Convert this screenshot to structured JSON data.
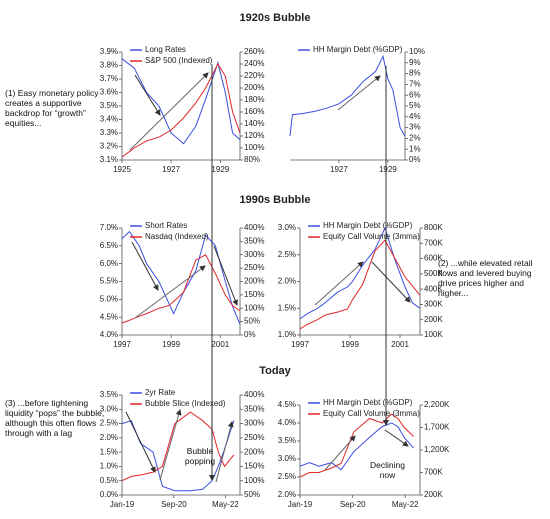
{
  "sections": [
    "1920s Bubble",
    "1990s Bubble",
    "Today"
  ],
  "annotations": [
    "(1) Easy monetary policy creates a supportive backdrop for “growth” equities...",
    "(2) ...while elevated retail flows and levered buying drive prices higher and higher...",
    "(3) ...before tightening liquidity “pops” the bubble, although this often flows through with a lag"
  ],
  "chart_data": [
    {
      "type": "line",
      "x": [
        1925,
        1925.5,
        1926,
        1926.5,
        1927,
        1927.5,
        1928,
        1928.4,
        1928.9,
        1929.2,
        1929.5,
        1929.8
      ],
      "xlim": [
        1925,
        1929.8
      ],
      "xticks": [
        1925,
        1927,
        1929
      ],
      "ylim": [
        3.1,
        3.9
      ],
      "yticks": [
        {
          "value": 3.1,
          "label": "3.1%"
        },
        {
          "value": 3.2,
          "label": "3.2%"
        },
        {
          "value": 3.3,
          "label": "3.3%"
        },
        {
          "value": 3.4,
          "label": "3.4%"
        },
        {
          "value": 3.5,
          "label": "3.5%"
        },
        {
          "value": 3.6,
          "label": "3.6%"
        },
        {
          "value": 3.7,
          "label": "3.7%"
        },
        {
          "value": 3.8,
          "label": "3.8%"
        },
        {
          "value": 3.9,
          "label": "3.9%"
        }
      ],
      "y2lim": [
        80,
        260
      ],
      "y2ticks": [
        {
          "value": 80,
          "label": "80%"
        },
        {
          "value": 100,
          "label": "100%"
        },
        {
          "value": 120,
          "label": "120%"
        },
        {
          "value": 140,
          "label": "140%"
        },
        {
          "value": 160,
          "label": "160%"
        },
        {
          "value": 180,
          "label": "180%"
        },
        {
          "value": 200,
          "label": "200%"
        },
        {
          "value": 220,
          "label": "220%"
        },
        {
          "value": 240,
          "label": "240%"
        },
        {
          "value": 260,
          "label": "260%"
        }
      ],
      "series": [
        {
          "name": "Long Rates",
          "color": "#3b4fe0",
          "values": [
            3.85,
            3.78,
            3.6,
            3.5,
            3.3,
            3.22,
            3.35,
            3.55,
            3.82,
            3.6,
            3.3,
            3.25
          ]
        },
        {
          "name": "S&P 500 (Indexed)",
          "color": "#e0262a",
          "axis": "y2",
          "values": [
            85,
            100,
            112,
            118,
            130,
            150,
            175,
            200,
            240,
            220,
            160,
            125
          ]
        }
      ]
    },
    {
      "type": "line",
      "x": [
        1925,
        1925.1,
        1925.5,
        1926,
        1926.5,
        1927,
        1927.5,
        1928,
        1928.5,
        1928.8,
        1929,
        1929.2,
        1929.5,
        1929.7
      ],
      "xlim": [
        1925,
        1929.7
      ],
      "xticks": [
        1927,
        1929
      ],
      "y2lim": [
        0,
        10
      ],
      "y2ticks": [
        {
          "value": 0,
          "label": "0%"
        },
        {
          "value": 1,
          "label": "1%"
        },
        {
          "value": 2,
          "label": "2%"
        },
        {
          "value": 3,
          "label": "3%"
        },
        {
          "value": 4,
          "label": "4%"
        },
        {
          "value": 5,
          "label": "5%"
        },
        {
          "value": 6,
          "label": "6%"
        },
        {
          "value": 7,
          "label": "7%"
        },
        {
          "value": 8,
          "label": "8%"
        },
        {
          "value": 9,
          "label": "9%"
        },
        {
          "value": 10,
          "label": "10%"
        }
      ],
      "series": [
        {
          "name": "HH Margin Debt (%GDP)",
          "color": "#3b4fe0",
          "axis": "y2",
          "values": [
            2.2,
            4.2,
            4.3,
            4.5,
            4.8,
            5.2,
            6.0,
            7.3,
            8.2,
            9.6,
            7.5,
            6.5,
            3.0,
            2.2
          ]
        }
      ]
    },
    {
      "type": "line",
      "x": [
        1997,
        1997.3,
        1997.7,
        1998,
        1998.5,
        1998.9,
        1999.1,
        1999.5,
        2000,
        2000.4,
        2000.8,
        2001.2,
        2001.5,
        2001.8
      ],
      "xlim": [
        1997,
        2001.8
      ],
      "xticks": [
        1997,
        1999,
        2001
      ],
      "ylim": [
        4.0,
        7.0
      ],
      "yticks": [
        {
          "value": 4.0,
          "label": "4.0%"
        },
        {
          "value": 4.5,
          "label": "4.5%"
        },
        {
          "value": 5.0,
          "label": "5.0%"
        },
        {
          "value": 5.5,
          "label": "5.5%"
        },
        {
          "value": 6.0,
          "label": "6.0%"
        },
        {
          "value": 6.5,
          "label": "6.5%"
        },
        {
          "value": 7.0,
          "label": "7.0%"
        }
      ],
      "y2lim": [
        0,
        400
      ],
      "y2ticks": [
        {
          "value": 0,
          "label": "0%"
        },
        {
          "value": 50,
          "label": "50%"
        },
        {
          "value": 100,
          "label": "100%"
        },
        {
          "value": 150,
          "label": "150%"
        },
        {
          "value": 200,
          "label": "200%"
        },
        {
          "value": 250,
          "label": "250%"
        },
        {
          "value": 300,
          "label": "300%"
        },
        {
          "value": 350,
          "label": "350%"
        },
        {
          "value": 400,
          "label": "400%"
        }
      ],
      "series": [
        {
          "name": "Short Rates",
          "color": "#3b4fe0",
          "values": [
            6.7,
            6.9,
            6.5,
            6.0,
            5.5,
            4.9,
            4.6,
            5.2,
            5.8,
            6.8,
            6.5,
            5.5,
            4.8,
            4.3
          ]
        },
        {
          "name": "Nasdaq (Indexed)",
          "color": "#e0262a",
          "axis": "y2",
          "values": [
            45,
            55,
            70,
            80,
            100,
            110,
            125,
            160,
            280,
            300,
            230,
            150,
            110,
            90
          ]
        }
      ]
    },
    {
      "type": "line",
      "x": [
        1997,
        1997.3,
        1997.7,
        1998,
        1998.5,
        1998.9,
        1999.1,
        1999.5,
        2000,
        2000.4,
        2000.8,
        2001.2,
        2001.5,
        2001.8
      ],
      "xlim": [
        1997,
        2001.8
      ],
      "xticks": [
        1997,
        1999,
        2001
      ],
      "ylim": [
        1.0,
        3.0
      ],
      "yticks": [
        {
          "value": 1.0,
          "label": "1.0%"
        },
        {
          "value": 1.5,
          "label": "1.5%"
        },
        {
          "value": 2.0,
          "label": "2.0%"
        },
        {
          "value": 2.5,
          "label": "2.5%"
        },
        {
          "value": 3.0,
          "label": "3.0%"
        }
      ],
      "y2lim": [
        100000,
        800000
      ],
      "y2ticks": [
        {
          "value": 100000,
          "label": "100K"
        },
        {
          "value": 200000,
          "label": "200K"
        },
        {
          "value": 300000,
          "label": "300K"
        },
        {
          "value": 400000,
          "label": "400K"
        },
        {
          "value": 500000,
          "label": "500K"
        },
        {
          "value": 600000,
          "label": "600K"
        },
        {
          "value": 700000,
          "label": "700K"
        },
        {
          "value": 800000,
          "label": "800K"
        }
      ],
      "series": [
        {
          "name": "HH Margin Debt (%GDP)",
          "color": "#3b4fe0",
          "values": [
            1.3,
            1.4,
            1.5,
            1.6,
            1.8,
            1.9,
            2.0,
            2.3,
            2.6,
            3.0,
            2.4,
            1.9,
            1.6,
            1.5
          ]
        },
        {
          "name": "Equity Call Volume (3mma)",
          "color": "#e0262a",
          "axis": "y2",
          "values": [
            140000,
            170000,
            200000,
            230000,
            250000,
            270000,
            330000,
            430000,
            650000,
            720000,
            600000,
            480000,
            420000,
            360000
          ]
        }
      ]
    },
    {
      "type": "line",
      "annotation": "Bubble popping",
      "x": [
        2019,
        2019.3,
        2019.6,
        2020,
        2020.3,
        2020.7,
        2021.2,
        2021.6,
        2021.9,
        2022.1,
        2022.3,
        2022.6
      ],
      "xlim": [
        2019,
        2022.8
      ],
      "xticks": [
        {
          "value": 2019,
          "label": "Jan-19"
        },
        {
          "value": 2020.67,
          "label": "Sep-20"
        },
        {
          "value": 2022.33,
          "label": "May-22"
        }
      ],
      "ylim": [
        0.0,
        3.5
      ],
      "yticks": [
        {
          "value": 0.0,
          "label": "0.0%"
        },
        {
          "value": 0.5,
          "label": "0.5%"
        },
        {
          "value": 1.0,
          "label": "1.0%"
        },
        {
          "value": 1.5,
          "label": "1.5%"
        },
        {
          "value": 2.0,
          "label": "2.0%"
        },
        {
          "value": 2.5,
          "label": "2.5%"
        },
        {
          "value": 3.0,
          "label": "3.0%"
        },
        {
          "value": 3.5,
          "label": "3.5%"
        }
      ],
      "y2lim": [
        50,
        400
      ],
      "y2ticks": [
        {
          "value": 50,
          "label": "50%"
        },
        {
          "value": 100,
          "label": "100%"
        },
        {
          "value": 150,
          "label": "150%"
        },
        {
          "value": 200,
          "label": "200%"
        },
        {
          "value": 250,
          "label": "250%"
        },
        {
          "value": 300,
          "label": "300%"
        },
        {
          "value": 350,
          "label": "350%"
        },
        {
          "value": 400,
          "label": "400%"
        }
      ],
      "series": [
        {
          "name": "2yr Rate",
          "color": "#3b4fe0",
          "values": [
            2.5,
            2.6,
            1.8,
            1.5,
            0.3,
            0.15,
            0.15,
            0.2,
            0.5,
            1.0,
            1.6,
            2.6
          ]
        },
        {
          "name": "Bubble Slice (Indexed)",
          "color": "#e0262a",
          "axis": "y2",
          "values": [
            100,
            115,
            120,
            130,
            150,
            300,
            340,
            310,
            280,
            200,
            150,
            190
          ]
        }
      ]
    },
    {
      "type": "line",
      "annotation": "Declining now",
      "x": [
        2019,
        2019.3,
        2019.6,
        2020,
        2020.3,
        2020.7,
        2021.2,
        2021.6,
        2021.9,
        2022.1,
        2022.3,
        2022.6
      ],
      "xlim": [
        2019,
        2022.8
      ],
      "xticks": [
        {
          "value": 2019,
          "label": "Jan-19"
        },
        {
          "value": 2020.67,
          "label": "Sep-20"
        },
        {
          "value": 2022.33,
          "label": "May-22"
        }
      ],
      "ylim": [
        2.0,
        4.5
      ],
      "yticks": [
        {
          "value": 2.0,
          "label": "2.0%"
        },
        {
          "value": 2.5,
          "label": "2.5%"
        },
        {
          "value": 3.0,
          "label": "3.0%"
        },
        {
          "value": 3.5,
          "label": "3.5%"
        },
        {
          "value": 4.0,
          "label": "4.0%"
        },
        {
          "value": 4.5,
          "label": "4.5%"
        }
      ],
      "y2lim": [
        200000,
        2200000
      ],
      "y2ticks": [
        {
          "value": 200000,
          "label": "200K"
        },
        {
          "value": 700000,
          "label": "700K"
        },
        {
          "value": 1200000,
          "label": "1,200K"
        },
        {
          "value": 1700000,
          "label": "1,700K"
        },
        {
          "value": 2200000,
          "label": "2,200K"
        }
      ],
      "series": [
        {
          "name": "HH Margin Debt (%GDP)",
          "color": "#3b4fe0",
          "values": [
            2.8,
            2.9,
            2.8,
            2.9,
            2.7,
            3.2,
            3.6,
            3.9,
            4.0,
            3.9,
            3.6,
            3.3
          ]
        },
        {
          "name": "Equity Call Volume (3mma)",
          "color": "#e0262a",
          "axis": "y2",
          "values": [
            600000,
            700000,
            700000,
            800000,
            900000,
            1600000,
            1900000,
            1800000,
            2000000,
            1900000,
            1700000,
            1500000
          ]
        }
      ]
    }
  ]
}
